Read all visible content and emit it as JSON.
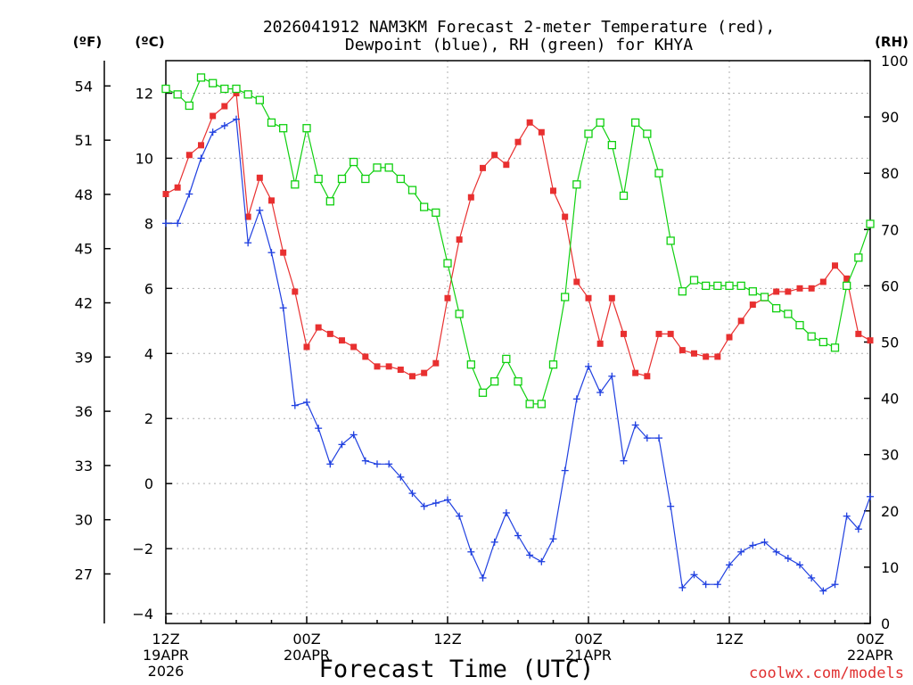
{
  "chart_data": {
    "type": "line",
    "title": [
      "2026041912 NAM3KM Forecast 2-meter Temperature (red),",
      "Dewpoint (blue), RH (green) for KHYA"
    ],
    "xlabel": "Forecast Time (UTC)",
    "credit": "coolwx.com/models",
    "units": {
      "f": "(ºF)",
      "c": "(ºC)",
      "rh": "(RH)"
    },
    "x_range_hours": [
      0,
      60
    ],
    "xticks": [
      {
        "hour": 0,
        "lines": [
          "12Z",
          "19APR",
          "2026"
        ]
      },
      {
        "hour": 12,
        "lines": [
          "00Z",
          "20APR"
        ]
      },
      {
        "hour": 24,
        "lines": [
          "12Z"
        ]
      },
      {
        "hour": 36,
        "lines": [
          "00Z",
          "21APR"
        ]
      },
      {
        "hour": 48,
        "lines": [
          "12Z"
        ]
      },
      {
        "hour": 60,
        "lines": [
          "00Z",
          "22APR"
        ]
      }
    ],
    "celsius_axis": {
      "range": [
        -4.3,
        13
      ],
      "ticks": [
        "12",
        "10",
        "8",
        "6",
        "4",
        "2",
        "0",
        "−2",
        "−4"
      ],
      "tick_values": [
        12,
        10,
        8,
        6,
        4,
        2,
        0,
        -2,
        -4
      ]
    },
    "fahrenheit_axis": {
      "ticks": [
        "54",
        "51",
        "48",
        "45",
        "42",
        "39",
        "36",
        "33",
        "30",
        "27"
      ],
      "tick_values": [
        54,
        51,
        48,
        45,
        42,
        39,
        36,
        33,
        30,
        27
      ]
    },
    "rh_axis": {
      "range": [
        0,
        100
      ],
      "ticks": [
        "100",
        "90",
        "80",
        "70",
        "60",
        "50",
        "40",
        "30",
        "20",
        "10",
        "0"
      ],
      "tick_values": [
        100,
        90,
        80,
        70,
        60,
        50,
        40,
        30,
        20,
        10,
        0
      ]
    },
    "series": [
      {
        "name": "2-meter Temperature",
        "unit": "C",
        "color": "#e83030",
        "marker": "square-filled",
        "values": [
          8.9,
          9.1,
          10.1,
          10.4,
          11.3,
          11.6,
          12.0,
          8.2,
          9.4,
          8.7,
          7.1,
          5.9,
          4.2,
          4.8,
          4.6,
          4.4,
          4.2,
          3.9,
          3.6,
          3.6,
          3.5,
          3.3,
          3.4,
          3.7,
          5.7,
          7.5,
          8.8,
          9.7,
          10.1,
          9.8,
          10.5,
          11.1,
          10.8,
          9.0,
          8.2,
          6.2,
          5.7,
          4.3,
          5.7,
          4.6,
          3.4,
          3.3,
          4.6,
          4.6,
          4.1,
          4.0,
          3.9,
          3.9,
          4.5,
          5.0,
          5.5,
          5.7,
          5.9,
          5.9,
          6.0,
          6.0,
          6.2,
          6.7,
          6.3,
          4.6,
          4.4
        ]
      },
      {
        "name": "Dewpoint",
        "unit": "C",
        "color": "#2040e0",
        "marker": "plus",
        "values": [
          8.0,
          8.0,
          8.9,
          10.0,
          10.8,
          11.0,
          11.2,
          7.4,
          8.4,
          7.1,
          5.4,
          2.4,
          2.5,
          1.7,
          0.6,
          1.2,
          1.5,
          0.7,
          0.6,
          0.6,
          0.2,
          -0.3,
          -0.7,
          -0.6,
          -0.5,
          -1.0,
          -2.1,
          -2.9,
          -1.8,
          -0.9,
          -1.6,
          -2.2,
          -2.4,
          -1.7,
          0.4,
          2.6,
          3.6,
          2.8,
          3.3,
          0.7,
          1.8,
          1.4,
          1.4,
          -0.7,
          -3.2,
          -2.8,
          -3.1,
          -3.1,
          -2.5,
          -2.1,
          -1.9,
          -1.8,
          -2.1,
          -2.3,
          -2.5,
          -2.9,
          -3.3,
          -3.1,
          -1.0,
          -1.4,
          -0.4
        ]
      },
      {
        "name": "RH",
        "unit": "%",
        "color": "#10d010",
        "marker": "square-open",
        "values": [
          95,
          94,
          92,
          97,
          96,
          95,
          95,
          94,
          93,
          89,
          88,
          78,
          88,
          79,
          75,
          79,
          82,
          79,
          81,
          81,
          79,
          77,
          74,
          73,
          64,
          55,
          46,
          41,
          43,
          47,
          43,
          39,
          39,
          46,
          58,
          78,
          87,
          89,
          85,
          76,
          89,
          87,
          80,
          68,
          59,
          61,
          60,
          60,
          60,
          60,
          59,
          58,
          56,
          55,
          53,
          51,
          50,
          49,
          60,
          65,
          71
        ]
      }
    ]
  }
}
